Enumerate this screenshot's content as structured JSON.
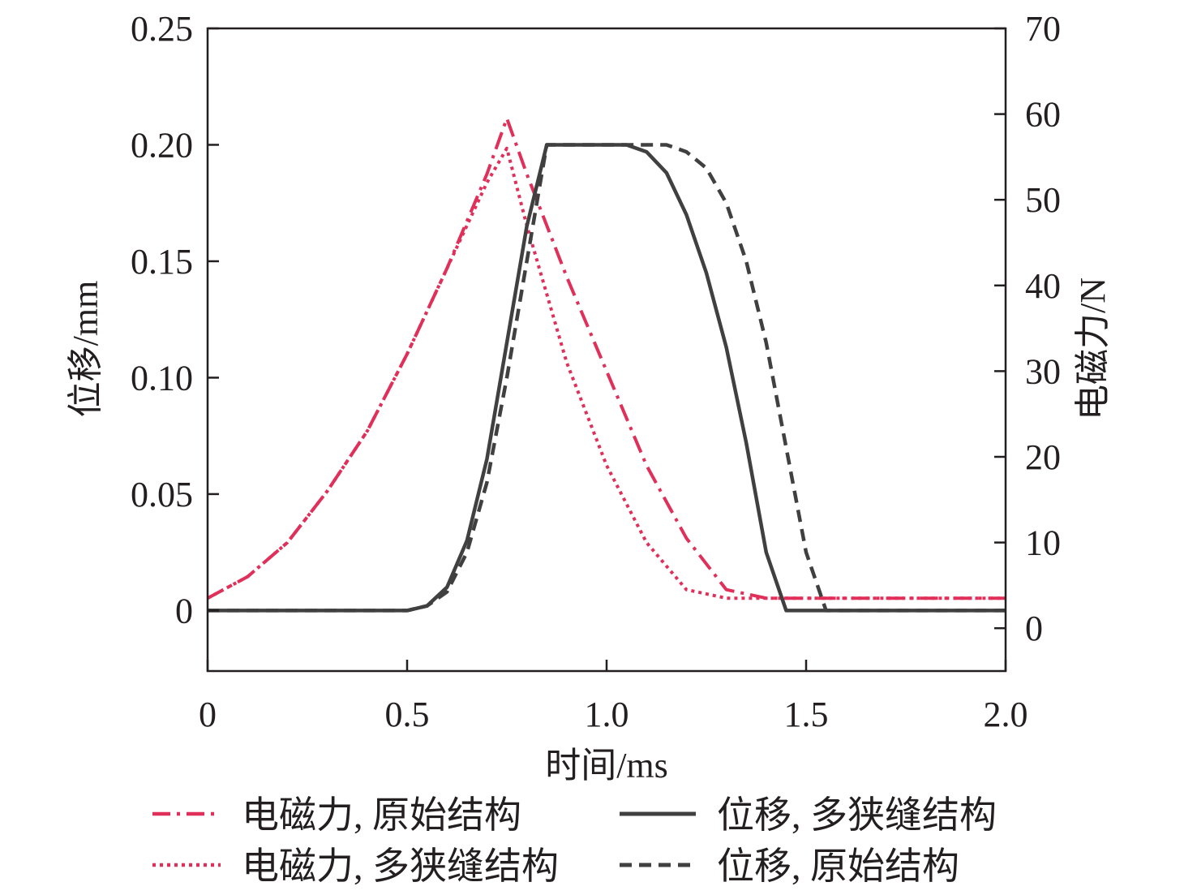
{
  "chart_data": {
    "type": "line",
    "x_axis": {
      "label": "时间/ms",
      "range": [
        0,
        2.0
      ],
      "ticks": [
        0,
        0.5,
        1.0,
        1.5,
        2.0
      ],
      "tick_labels": [
        "0",
        "0.5",
        "1.0",
        "1.5",
        "2.0"
      ]
    },
    "y_left": {
      "label": "位移/mm",
      "range": [
        -0.026,
        0.25
      ],
      "ticks": [
        0,
        0.05,
        0.1,
        0.15,
        0.2,
        0.25
      ],
      "tick_labels": [
        "0",
        "0.05",
        "0.10",
        "0.15",
        "0.20",
        "0.25"
      ]
    },
    "y_right": {
      "label": "电磁力/N",
      "range": [
        -5,
        70
      ],
      "ticks": [
        0,
        10,
        20,
        30,
        40,
        50,
        60,
        70
      ],
      "tick_labels": [
        "0",
        "10",
        "20",
        "30",
        "40",
        "50",
        "60",
        "70"
      ]
    },
    "grid": false,
    "legend_position": "bottom",
    "series": [
      {
        "name": "电磁力, 原始结构",
        "axis": "right",
        "color": "#e0305a",
        "style": "dashdot",
        "x": [
          0,
          0.1,
          0.2,
          0.3,
          0.4,
          0.5,
          0.6,
          0.7,
          0.75,
          0.8,
          0.9,
          1.0,
          1.1,
          1.2,
          1.3,
          1.4,
          1.5,
          1.6,
          1.7,
          1.8,
          1.9,
          2.0
        ],
        "y": [
          3.5,
          6,
          10,
          16,
          23,
          32,
          42,
          53,
          59.5,
          53,
          41,
          30,
          19,
          10.5,
          4.5,
          3.5,
          3.5,
          3.5,
          3.5,
          3.5,
          3.5,
          3.5
        ]
      },
      {
        "name": "电磁力, 多狭缝结构",
        "axis": "right",
        "color": "#e0305a",
        "style": "dotted",
        "x": [
          0,
          0.1,
          0.2,
          0.3,
          0.4,
          0.5,
          0.6,
          0.7,
          0.75,
          0.8,
          0.9,
          1.0,
          1.1,
          1.2,
          1.3,
          1.4,
          1.5,
          1.6,
          1.7,
          1.8,
          1.9,
          2.0
        ],
        "y": [
          3.5,
          6,
          10,
          16,
          23,
          32,
          42,
          52,
          56,
          47,
          31,
          19,
          10,
          4.5,
          3.5,
          3.5,
          3.5,
          3.5,
          3.5,
          3.5,
          3.5,
          3.5
        ]
      },
      {
        "name": "位移, 多狭缝结构",
        "axis": "left",
        "color": "#404040",
        "style": "solid",
        "x": [
          0,
          0.5,
          0.55,
          0.6,
          0.65,
          0.7,
          0.75,
          0.8,
          0.85,
          0.9,
          1.0,
          1.05,
          1.1,
          1.15,
          1.2,
          1.25,
          1.3,
          1.35,
          1.4,
          1.45,
          1.5,
          2.0
        ],
        "y": [
          0,
          0,
          0.002,
          0.01,
          0.03,
          0.065,
          0.115,
          0.165,
          0.2,
          0.2,
          0.2,
          0.2,
          0.197,
          0.188,
          0.17,
          0.145,
          0.113,
          0.072,
          0.025,
          0,
          0,
          0
        ]
      },
      {
        "name": "位移, 原始结构",
        "axis": "left",
        "color": "#404040",
        "style": "dashed",
        "x": [
          0,
          0.5,
          0.55,
          0.6,
          0.65,
          0.7,
          0.75,
          0.8,
          0.85,
          0.9,
          1.0,
          1.1,
          1.15,
          1.2,
          1.25,
          1.3,
          1.35,
          1.4,
          1.45,
          1.5,
          1.55,
          2.0
        ],
        "y": [
          0,
          0,
          0.002,
          0.008,
          0.025,
          0.055,
          0.1,
          0.15,
          0.2,
          0.2,
          0.2,
          0.2,
          0.2,
          0.197,
          0.19,
          0.175,
          0.15,
          0.115,
          0.07,
          0.025,
          0,
          0
        ]
      }
    ]
  }
}
